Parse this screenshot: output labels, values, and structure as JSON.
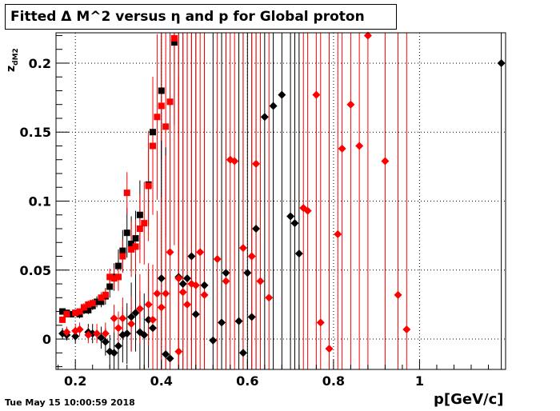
{
  "title": "Fitted Δ M^2 versus η and p for Global proton",
  "timestamp": "Tue May 15 10:00:59 2018",
  "chart_data": {
    "type": "scatter",
    "title": "Fitted Δ M^2 versus η and p for Global proton",
    "xlabel": "p[GeV/c]",
    "ylabel": "z_dM2",
    "ylabel_main": "z",
    "ylabel_sub": "dM2",
    "xlim": [
      0.155,
      1.2
    ],
    "ylim": [
      -0.022,
      0.222
    ],
    "xticks": [
      0.2,
      0.4,
      0.6,
      0.8,
      1.0
    ],
    "xtick_labels": [
      "0.2",
      "0.4",
      "0.6",
      "0.8",
      "1"
    ],
    "yticks": [
      0.0,
      0.05,
      0.1,
      0.15,
      0.2
    ],
    "ytick_labels": [
      "0",
      "0.05",
      "0.1",
      "0.15",
      "0.2"
    ],
    "grid": true,
    "colors": {
      "black": "#000000",
      "red": "#ff0000"
    },
    "series": [
      {
        "color": "black",
        "marker": "square",
        "points": [
          [
            0.17,
            0.02,
            0.002
          ],
          [
            0.18,
            0.019,
            0.002
          ],
          [
            0.19,
            0.018,
            0.002
          ],
          [
            0.2,
            0.019,
            0.002
          ],
          [
            0.21,
            0.018,
            0.003
          ],
          [
            0.22,
            0.021,
            0.003
          ],
          [
            0.23,
            0.021,
            0.003
          ],
          [
            0.24,
            0.024,
            0.003
          ],
          [
            0.25,
            0.027,
            0.004
          ],
          [
            0.26,
            0.027,
            0.004
          ],
          [
            0.27,
            0.031,
            0.006
          ],
          [
            0.28,
            0.038,
            0.008
          ],
          [
            0.29,
            0.045,
            0.01
          ],
          [
            0.3,
            0.053,
            0.012
          ],
          [
            0.31,
            0.064,
            0.015
          ],
          [
            0.32,
            0.077,
            0.018
          ],
          [
            0.33,
            0.069,
            0.02
          ],
          [
            0.34,
            0.073,
            0.02
          ],
          [
            0.35,
            0.09,
            0.025
          ],
          [
            0.37,
            0.112,
            0.03
          ],
          [
            0.38,
            0.15,
            0.04
          ],
          [
            0.4,
            0.18,
            0.05
          ],
          [
            0.43,
            0.215,
            0.06
          ]
        ]
      },
      {
        "color": "red",
        "marker": "square",
        "points": [
          [
            0.17,
            0.014,
            0.002
          ],
          [
            0.18,
            0.018,
            0.002
          ],
          [
            0.2,
            0.019,
            0.002
          ],
          [
            0.21,
            0.02,
            0.002
          ],
          [
            0.22,
            0.023,
            0.003
          ],
          [
            0.23,
            0.025,
            0.003
          ],
          [
            0.24,
            0.026,
            0.003
          ],
          [
            0.26,
            0.03,
            0.004
          ],
          [
            0.27,
            0.032,
            0.005
          ],
          [
            0.28,
            0.045,
            0.006
          ],
          [
            0.29,
            0.044,
            0.008
          ],
          [
            0.3,
            0.045,
            0.01
          ],
          [
            0.31,
            0.06,
            0.012
          ],
          [
            0.32,
            0.106,
            0.015
          ],
          [
            0.33,
            0.065,
            0.02
          ],
          [
            0.34,
            0.067,
            0.02
          ],
          [
            0.35,
            0.08,
            0.025
          ],
          [
            0.36,
            0.084,
            0.03
          ],
          [
            0.37,
            0.111,
            0.04
          ],
          [
            0.38,
            0.14,
            0.05
          ],
          [
            0.39,
            0.161,
            0.06
          ],
          [
            0.4,
            0.169,
            0.07
          ],
          [
            0.41,
            0.154,
            0.08
          ],
          [
            0.42,
            0.172,
            0.1
          ],
          [
            0.43,
            0.218,
            0.15
          ]
        ]
      },
      {
        "color": "black",
        "marker": "diamond",
        "points": [
          [
            0.17,
            0.004,
            0.004
          ],
          [
            0.18,
            0.003,
            0.004
          ],
          [
            0.2,
            0.002,
            0.005
          ],
          [
            0.23,
            0.005,
            0.006
          ],
          [
            0.24,
            0.004,
            0.007
          ],
          [
            0.26,
            0.001,
            0.008
          ],
          [
            0.27,
            -0.002,
            0.01
          ],
          [
            0.28,
            -0.009,
            0.012
          ],
          [
            0.29,
            -0.01,
            0.015
          ],
          [
            0.3,
            -0.005,
            0.018
          ],
          [
            0.31,
            0.003,
            0.02
          ],
          [
            0.32,
            0.004,
            0.022
          ],
          [
            0.33,
            0.016,
            0.025
          ],
          [
            0.34,
            0.019,
            0.028
          ],
          [
            0.35,
            0.005,
            0.03
          ],
          [
            0.36,
            0.003,
            0.03
          ],
          [
            0.37,
            0.014,
            0.035
          ],
          [
            0.38,
            0.008,
            0.04
          ],
          [
            0.4,
            0.044,
            0.1
          ],
          [
            0.41,
            -0.011,
            0.15
          ],
          [
            0.42,
            -0.014,
            0.2
          ],
          [
            0.44,
            0.045,
            0.3
          ],
          [
            0.45,
            0.04,
            0.3
          ],
          [
            0.46,
            0.044,
            0.3
          ],
          [
            0.47,
            0.06,
            0.3
          ],
          [
            0.48,
            0.018,
            0.3
          ],
          [
            0.5,
            0.039,
            0.3
          ],
          [
            0.52,
            -0.001,
            0.3
          ],
          [
            0.54,
            0.012,
            0.3
          ],
          [
            0.55,
            0.048,
            0.3
          ],
          [
            0.58,
            0.013,
            0.3
          ],
          [
            0.59,
            -0.01,
            0.3
          ],
          [
            0.6,
            0.048,
            0.3
          ],
          [
            0.61,
            0.016,
            0.3
          ],
          [
            0.62,
            0.08,
            0.3
          ],
          [
            0.64,
            0.161,
            0.3
          ],
          [
            0.66,
            0.169,
            0.3
          ],
          [
            0.68,
            0.177,
            0.3
          ],
          [
            0.7,
            0.089,
            0.3
          ],
          [
            0.71,
            0.084,
            0.3
          ],
          [
            0.72,
            0.062,
            0.3
          ],
          [
            1.19,
            0.2,
            0.3
          ]
        ]
      },
      {
        "color": "red",
        "marker": "diamond",
        "points": [
          [
            0.18,
            0.005,
            0.004
          ],
          [
            0.2,
            0.006,
            0.005
          ],
          [
            0.21,
            0.007,
            0.005
          ],
          [
            0.23,
            0.003,
            0.006
          ],
          [
            0.25,
            0.004,
            0.007
          ],
          [
            0.27,
            0.004,
            0.008
          ],
          [
            0.29,
            0.015,
            0.01
          ],
          [
            0.3,
            0.008,
            0.012
          ],
          [
            0.31,
            0.015,
            0.015
          ],
          [
            0.33,
            0.011,
            0.02
          ],
          [
            0.35,
            0.022,
            0.025
          ],
          [
            0.37,
            0.025,
            0.03
          ],
          [
            0.38,
            0.014,
            0.04
          ],
          [
            0.39,
            0.033,
            0.06
          ],
          [
            0.4,
            0.023,
            0.08
          ],
          [
            0.41,
            0.033,
            0.1
          ],
          [
            0.42,
            0.063,
            0.15
          ],
          [
            0.44,
            -0.009,
            0.2
          ],
          [
            0.44,
            0.044,
            0.2
          ],
          [
            0.45,
            0.034,
            0.2
          ],
          [
            0.46,
            0.025,
            0.3
          ],
          [
            0.47,
            0.04,
            0.3
          ],
          [
            0.48,
            0.039,
            0.3
          ],
          [
            0.49,
            0.063,
            0.3
          ],
          [
            0.5,
            0.032,
            0.3
          ],
          [
            0.53,
            0.058,
            0.3
          ],
          [
            0.55,
            0.042,
            0.3
          ],
          [
            0.56,
            0.13,
            0.3
          ],
          [
            0.57,
            0.129,
            0.3
          ],
          [
            0.59,
            0.066,
            0.3
          ],
          [
            0.61,
            0.06,
            0.3
          ],
          [
            0.62,
            0.127,
            0.3
          ],
          [
            0.63,
            0.042,
            0.3
          ],
          [
            0.65,
            0.03,
            0.3
          ],
          [
            0.73,
            0.095,
            0.3
          ],
          [
            0.74,
            0.093,
            0.3
          ],
          [
            0.76,
            0.177,
            0.3
          ],
          [
            0.77,
            0.012,
            0.3
          ],
          [
            0.79,
            -0.007,
            0.3
          ],
          [
            0.81,
            0.076,
            0.3
          ],
          [
            0.82,
            0.138,
            0.3
          ],
          [
            0.84,
            0.17,
            0.3
          ],
          [
            0.86,
            0.14,
            0.3
          ],
          [
            0.88,
            0.22,
            0.3
          ],
          [
            0.92,
            0.129,
            0.3
          ],
          [
            0.95,
            0.032,
            0.3
          ],
          [
            0.97,
            0.007,
            0.3
          ]
        ]
      }
    ]
  }
}
